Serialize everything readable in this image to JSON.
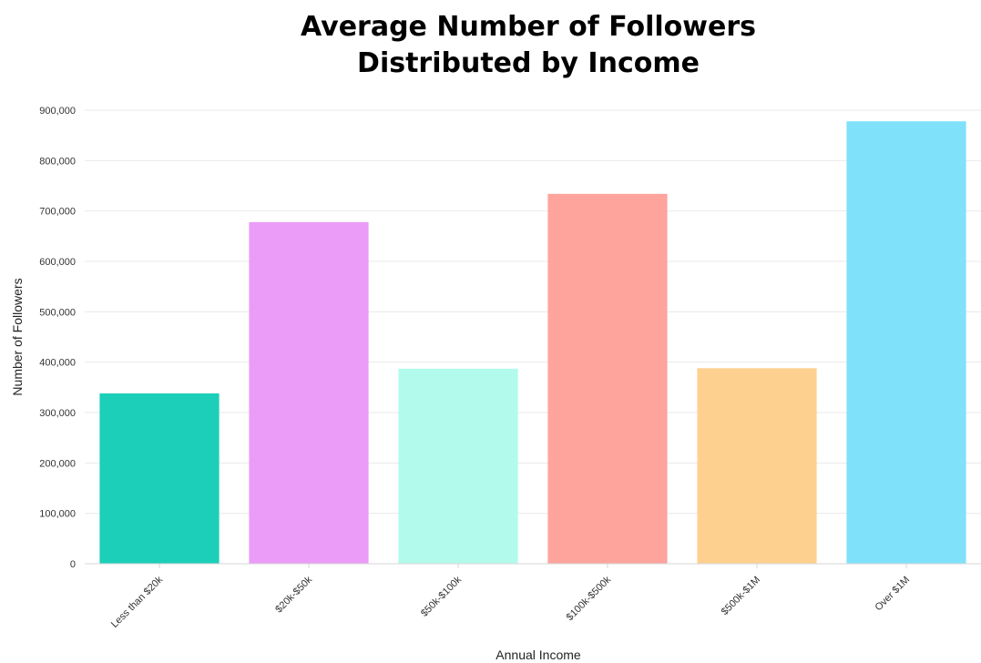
{
  "chart_data": {
    "type": "bar",
    "title_line1": "Average Number of Followers",
    "title_line2": "Distributed by Income",
    "xlabel": "Annual Income",
    "ylabel": "Number of Followers",
    "categories": [
      "Less than $20k",
      "$20k-$50k",
      "$50k-$100k",
      "$100k-$500k",
      "$500k-$1M",
      "Over $1M"
    ],
    "values": [
      338000,
      678000,
      387000,
      734000,
      388000,
      878000
    ],
    "colors": [
      "#1ccfb9",
      "#eb9cf8",
      "#b2fbec",
      "#fea49d",
      "#fed090",
      "#80e1fb"
    ],
    "ylim": [
      0,
      900000
    ],
    "yticks": [
      0,
      100000,
      200000,
      300000,
      400000,
      500000,
      600000,
      700000,
      800000,
      900000
    ],
    "ytick_labels": [
      "0",
      "100,000",
      "200,000",
      "300,000",
      "400,000",
      "500,000",
      "600,000",
      "700,000",
      "800,000",
      "900,000"
    ],
    "grid": true,
    "legend": "none"
  }
}
